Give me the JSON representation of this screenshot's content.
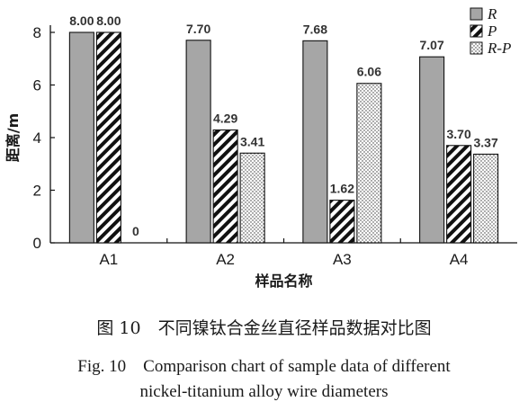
{
  "chart_data": {
    "type": "bar",
    "categories": [
      "A1",
      "A2",
      "A3",
      "A4"
    ],
    "series": [
      {
        "name": "R",
        "values": [
          8.0,
          7.7,
          7.68,
          7.07
        ],
        "labels": [
          "8.00",
          "7.70",
          "7.68",
          "7.07"
        ],
        "pattern": "solid",
        "color": "#a6a6a6"
      },
      {
        "name": "P",
        "values": [
          8.0,
          4.29,
          1.62,
          3.7
        ],
        "labels": [
          "8.00",
          "4.29",
          "1.62",
          "3.70"
        ],
        "pattern": "hatch"
      },
      {
        "name": "R-P",
        "values": [
          0,
          3.41,
          6.06,
          3.37
        ],
        "labels": [
          "0",
          "3.41",
          "6.06",
          "3.37"
        ],
        "pattern": "dots"
      }
    ],
    "xlabel": "样品名称",
    "ylabel": "距离/m",
    "ylim": [
      0,
      8
    ],
    "yticks": [
      0,
      2,
      4,
      6,
      8
    ],
    "legend_position": "top-right",
    "grid": false
  },
  "caption": {
    "zh": "图 10　不同镍钛合金丝直径样品数据对比图",
    "en_line1": "Fig. 10　Comparison chart of sample data of different",
    "en_line2": "nickel-titanium alloy wire diameters"
  }
}
